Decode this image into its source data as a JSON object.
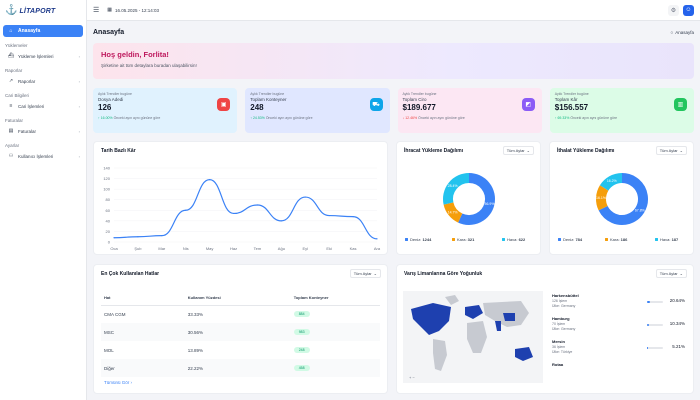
{
  "brand": {
    "name": "LİTAPORT"
  },
  "topbar": {
    "datetime": "16.05.2025 - 12:14:03"
  },
  "sidebar": {
    "home": "Anasayfa",
    "sections": [
      {
        "title": "Yüklemeler",
        "item": "Yükleme İşlemleri"
      },
      {
        "title": "Raporlar",
        "item": "Raporlar"
      },
      {
        "title": "Cari Bilgileri",
        "item": "Cari İşlemleri"
      },
      {
        "title": "Faturalar",
        "item": "Faturalar"
      },
      {
        "title": "Ayarlar",
        "item": "Kullanıcı İşlemleri"
      }
    ]
  },
  "page": {
    "title": "Anasayfa",
    "breadcrumb": "Anasayfa"
  },
  "welcome": {
    "title": "Hoş geldin, Forlita!",
    "subtitle": "Şirketine ait tüm detaylara buradan ulaşabilirsin!"
  },
  "stats": [
    {
      "sub": "Aylık Trendler bugüne",
      "label": "Dosya Adedi",
      "value": "126",
      "change": "↑ 16.00%",
      "note": "Önceki ayın aynı gününe göre",
      "color": "#ef4444",
      "bg": "#e0f2fe",
      "changeColor": "#10b981"
    },
    {
      "sub": "Aylık Trendler bugüne",
      "label": "Toplam Konteyner",
      "value": "248",
      "change": "↑ 24.53%",
      "note": "Önceki ayın aynı gününe göre",
      "color": "#0ea5e9",
      "bg": "#e0e7ff",
      "changeColor": "#10b981"
    },
    {
      "sub": "Aylık Trendler bugüne",
      "label": "Toplam Ciro",
      "value": "$189.677",
      "change": "↓ 12.46%",
      "note": "Önceki ayın aynı gününe göre",
      "color": "#8b5cf6",
      "bg": "#fce7f3",
      "changeColor": "#ef4444"
    },
    {
      "sub": "Aylık Trendler bugüne",
      "label": "Toplam Kâr",
      "value": "$156.557",
      "change": "↑ 69.33%",
      "note": "Önceki ayın aynı gününe göre",
      "color": "#22c55e",
      "bg": "#dcfce7",
      "changeColor": "#10b981"
    }
  ],
  "chart_data": [
    {
      "type": "line",
      "title": "Tarih Bazlı Kâr",
      "categories": [
        "Oca",
        "Şub",
        "Mar",
        "Nis",
        "May",
        "Haz",
        "Tem",
        "Ağu",
        "Eyl",
        "Eki",
        "Kas",
        "Ara"
      ],
      "values": [
        8,
        10,
        12,
        60,
        118,
        54,
        70,
        40,
        85,
        50,
        48,
        6
      ],
      "ylim": [
        0,
        140
      ]
    },
    {
      "type": "pie",
      "title": "İhracat Yükleme Dağılımı",
      "filter": "Tüm Aylar",
      "labels": [
        "Deniz",
        "Kara",
        "Hava"
      ],
      "values": [
        1244,
        321,
        622
      ],
      "percents": [
        "56.9%",
        "14.7%",
        "28.4%"
      ],
      "colors": [
        "#3b82f6",
        "#f59e0b",
        "#22c3ee"
      ]
    },
    {
      "type": "pie",
      "title": "İthalat Yükleme Dağılımı",
      "filter": "Tüm Aylar",
      "labels": [
        "Deniz",
        "Kara",
        "Hava"
      ],
      "values": [
        784,
        186,
        187
      ],
      "percents": [
        "67.8%",
        "16.1%",
        "16.2%"
      ],
      "colors": [
        "#3b82f6",
        "#f59e0b",
        "#22c3ee"
      ]
    }
  ],
  "lines": {
    "title": "En Çok Kullanılan Hatlar",
    "filter": "Tüm Aylar",
    "headers": [
      "Hat",
      "Kullanım Yüzdesi",
      "Toplam Konteyner"
    ],
    "rows": [
      {
        "hat": "CMA CGM",
        "pct": "33.33%",
        "total": "884"
      },
      {
        "hat": "MSC",
        "pct": "30.56%",
        "total": "983"
      },
      {
        "hat": "MOL",
        "pct": "13.89%",
        "total": "248"
      },
      {
        "hat": "Diğer",
        "pct": "22.22%",
        "total": "458"
      }
    ],
    "more": "Tümünü Gör"
  },
  "ports": {
    "title": "Varış Limanlarına Göre Yoğunluk",
    "filter": "Tüm Aylar",
    "items": [
      {
        "name": "Harkensbüttel",
        "sub1": "126 İşlem",
        "sub2": "Ülke: Germany",
        "pct": "20.64%",
        "fill": 0.21
      },
      {
        "name": "Hamburg",
        "sub1": "70 İşlem",
        "sub2": "Ülke: Germany",
        "pct": "10.34%",
        "fill": 0.1
      },
      {
        "name": "Mersin",
        "sub1": "36 İşlem",
        "sub2": "Ülke: Türkiye",
        "pct": "5.21%",
        "fill": 0.05
      },
      {
        "name": "Rotaa",
        "sub1": "",
        "sub2": "",
        "pct": "",
        "fill": 0
      }
    ]
  }
}
